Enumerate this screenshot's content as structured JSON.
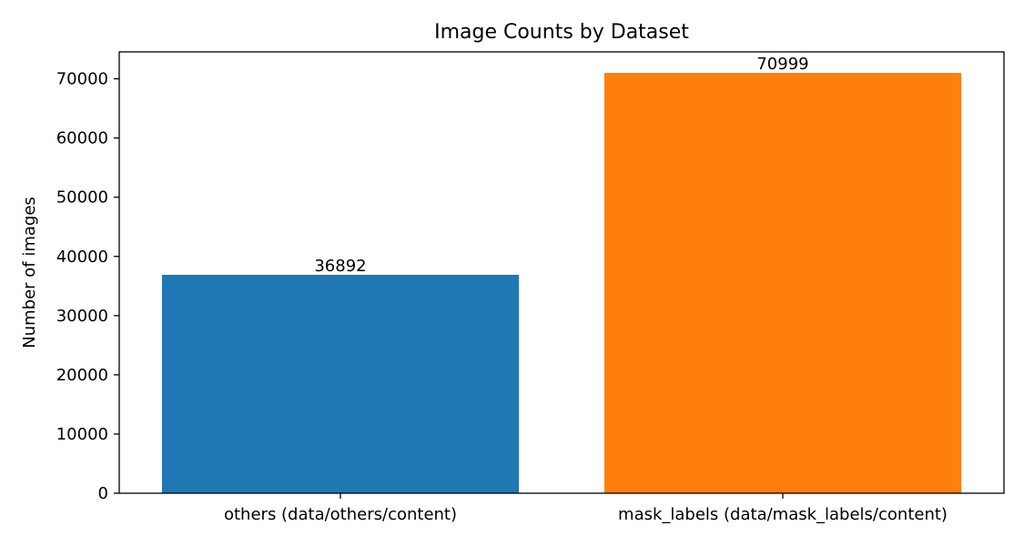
{
  "chart_data": {
    "type": "bar",
    "title": "Image Counts by Dataset",
    "xlabel": "",
    "ylabel": "Number of images",
    "categories": [
      "others (data/others/content)",
      "mask_labels (data/mask_labels/content)"
    ],
    "values": [
      36892,
      70999
    ],
    "data_labels": [
      "36892",
      "70999"
    ],
    "colors": [
      "#1f77b4",
      "#ff7f0e"
    ],
    "ylim": [
      0,
      74549
    ],
    "yticks": [
      0,
      10000,
      20000,
      30000,
      40000,
      50000,
      60000,
      70000
    ],
    "grid": false,
    "legend": "none"
  }
}
